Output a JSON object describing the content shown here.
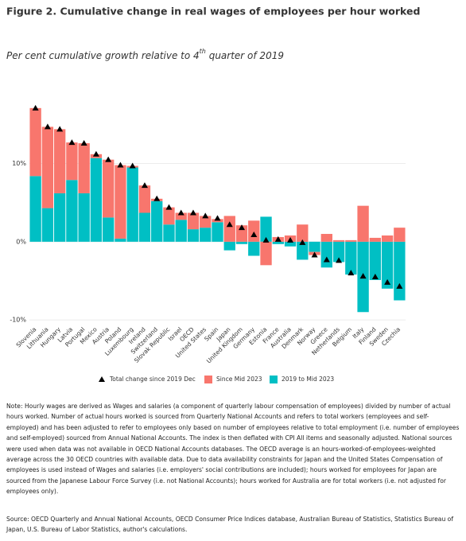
{
  "chart_data": {
    "type": "stacked-bar",
    "title": "Figure 2. Cumulative change in real wages of employees per hour worked",
    "subtitle_parts": [
      "Per cent cumulative growth relative to 4",
      "th",
      " quarter of 2019"
    ],
    "categories": [
      "Slovenia",
      "Lithuania",
      "Hungary",
      "Latvia",
      "Portugal",
      "Mexico",
      "Austria",
      "Poland",
      "Luxembourg",
      "Ireland",
      "Switzerland",
      "Slovak Republic",
      "Israel",
      "OECD",
      "United States",
      "Spain",
      "Japan",
      "United Kingdom",
      "Germany",
      "Estonia",
      "France",
      "Australia",
      "Denmark",
      "Norway",
      "Greece",
      "Netherlands",
      "Belgium",
      "Italy",
      "Finland",
      "Sweden",
      "Czechia"
    ],
    "series": [
      {
        "name": "2019 to Mid 2023",
        "color": "#00bfc4",
        "values": [
          8.4,
          4.3,
          6.2,
          7.9,
          6.2,
          10.7,
          3.1,
          0.4,
          9.5,
          3.7,
          5.2,
          2.2,
          2.8,
          1.6,
          1.8,
          2.5,
          -1.1,
          -0.3,
          -1.8,
          3.2,
          -0.3,
          -0.6,
          -2.3,
          -1.3,
          -3.3,
          -2.6,
          -4.2,
          -9.0,
          -4.9,
          -6.0,
          -7.5
        ]
      },
      {
        "name": "Since Mid 2023",
        "color": "#f8766d",
        "values": [
          8.7,
          10.4,
          8.2,
          4.8,
          6.4,
          0.5,
          7.4,
          9.4,
          0.2,
          3.5,
          0.3,
          2.2,
          0.9,
          2.1,
          1.5,
          0.4,
          3.3,
          2.1,
          2.7,
          -3.0,
          0.6,
          0.8,
          2.2,
          -0.4,
          1.0,
          0.2,
          0.2,
          4.6,
          0.5,
          0.8,
          1.8
        ]
      }
    ],
    "totals": {
      "name": "Total change since 2019 Dec",
      "color": "#000000",
      "values": [
        17.1,
        14.7,
        14.4,
        12.7,
        12.6,
        11.2,
        10.5,
        9.8,
        9.7,
        7.2,
        5.5,
        4.4,
        3.7,
        3.7,
        3.3,
        3.0,
        2.2,
        1.8,
        0.9,
        0.2,
        0.3,
        0.2,
        -0.1,
        -1.7,
        -2.3,
        -2.4,
        -4.0,
        -4.4,
        -4.5,
        -5.2,
        -5.7
      ]
    },
    "legend_order": [
      "totals",
      "series.1",
      "series.0"
    ],
    "ylim": [
      -10.5,
      18
    ],
    "yticks": [
      {
        "value": -10,
        "label": "-10%"
      },
      {
        "value": 0,
        "label": "0%"
      },
      {
        "value": 10,
        "label": "10%"
      }
    ],
    "grid": true,
    "note": "Note: Hourly wages are derived as Wages and salaries (a component of quarterly labour compensation of employees) divided by number of actual hours worked. Number of actual hours worked is sourced from Quarterly National Accounts and refers to total workers (employees and self-employed) and has been adjusted to refer to employees only based on number of employees relative to total employment (i.e. number of employees and self-employed) sourced from Annual National Accounts. The index is then deflated with CPI All items and seasonally adjusted. National sources were used when data was not available in OECD National Accounts databases. The OECD average is an hours-worked-of-employees-weighted average across the 30 OECD countries with available data. Due to data availability constraints for Japan and the United States Compensation of employees is used instead of Wages and salaries (i.e. employers' social contributions are included); hours worked for employees for Japan are sourced from the Japanese Labour Force Survey (i.e. not National Accounts); hours worked for Australia are for total workers (i.e. not adjusted for employees only).",
    "source": "Source: OECD Quarterly and Annual National Accounts, OECD Consumer Price Indices database, Australian Bureau of Statistics, Statistics Bureau of Japan, U.S. Bureau of Labor Statistics, author's calculations."
  }
}
